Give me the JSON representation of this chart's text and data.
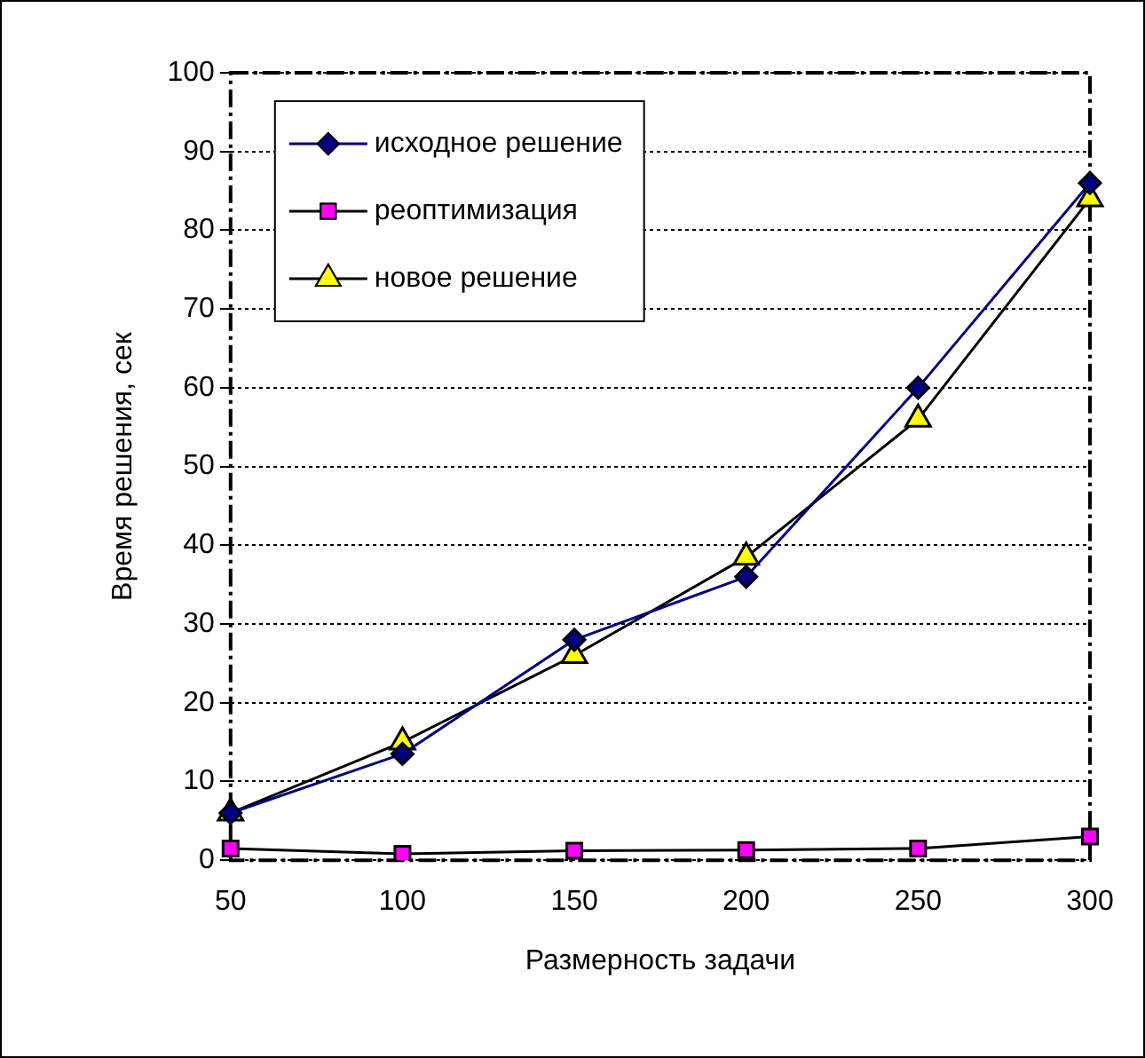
{
  "chart_data": {
    "type": "line",
    "xlabel": "Размерность задачи",
    "ylabel": "Время решения, сек",
    "categories": [
      "50",
      "100",
      "150",
      "200",
      "250",
      "300"
    ],
    "series": [
      {
        "name": "исходное решение",
        "color": "#000080",
        "marker": "diamond",
        "values": [
          6,
          13.5,
          28,
          36,
          60,
          86
        ]
      },
      {
        "name": "реоптимизация",
        "color": "#ff00ff",
        "marker": "square",
        "values": [
          1.5,
          0.8,
          1.2,
          1.3,
          1.5,
          3
        ]
      },
      {
        "name": "новое решение",
        "color": "#ffff00",
        "marker": "triangle",
        "values": [
          6,
          15,
          26,
          38.5,
          56,
          84
        ]
      }
    ],
    "ylim": [
      0,
      100
    ],
    "yticks": [
      0,
      10,
      20,
      30,
      40,
      50,
      60,
      70,
      80,
      90,
      100
    ],
    "grid": "y",
    "legend": "top left",
    "line_style": "solid"
  }
}
